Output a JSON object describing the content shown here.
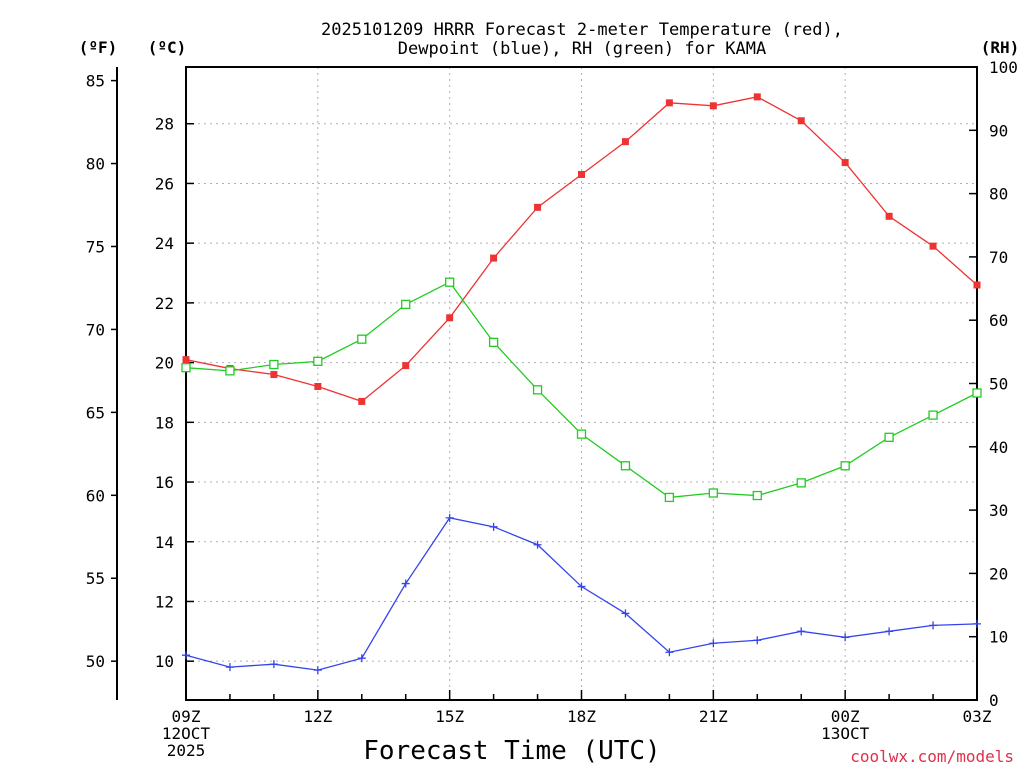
{
  "chart_data": {
    "type": "line",
    "title": [
      "2025101209 HRRR Forecast 2-meter Temperature (red),",
      "Dewpoint (blue), RH (green) for KAMA"
    ],
    "xlabel": "Forecast Time (UTC)",
    "credit": "coolwx.com/models",
    "units": {
      "fahrenheit": "(ºF)",
      "celsius": "(ºC)",
      "rh": "(RH)"
    },
    "x": [
      "09Z",
      "10Z",
      "11Z",
      "12Z",
      "13Z",
      "14Z",
      "15Z",
      "16Z",
      "17Z",
      "18Z",
      "19Z",
      "20Z",
      "21Z",
      "22Z",
      "23Z",
      "00Z",
      "01Z",
      "02Z",
      "03Z"
    ],
    "x_tick_labels": [
      {
        "index": 0,
        "lines": [
          "09Z",
          "12OCT",
          "2025"
        ]
      },
      {
        "index": 3,
        "lines": [
          "12Z"
        ]
      },
      {
        "index": 6,
        "lines": [
          "15Z"
        ]
      },
      {
        "index": 9,
        "lines": [
          "18Z"
        ]
      },
      {
        "index": 12,
        "lines": [
          "21Z"
        ]
      },
      {
        "index": 15,
        "lines": [
          "00Z",
          "13OCT"
        ]
      },
      {
        "index": 18,
        "lines": [
          "03Z"
        ]
      }
    ],
    "y_celsius": {
      "lim": [
        8.7,
        29.9
      ],
      "ticks": [
        10,
        12,
        14,
        16,
        18,
        20,
        22,
        24,
        26,
        28
      ]
    },
    "y_fahrenheit": {
      "lim": [
        47.66,
        85.82
      ],
      "ticks": [
        50,
        55,
        60,
        65,
        70,
        75,
        80,
        85
      ]
    },
    "y_rh": {
      "lim": [
        0,
        100
      ],
      "ticks": [
        0,
        10,
        20,
        30,
        40,
        50,
        60,
        70,
        80,
        90,
        100
      ]
    },
    "series": [
      {
        "name": "Temperature",
        "axis": "celsius",
        "color": "#ee3333",
        "marker": "filled-square",
        "values": [
          20.1,
          19.8,
          19.6,
          19.2,
          18.7,
          19.9,
          21.5,
          23.5,
          25.2,
          26.3,
          27.4,
          28.7,
          28.6,
          28.9,
          28.1,
          26.7,
          24.9,
          23.9,
          22.6
        ]
      },
      {
        "name": "Dewpoint",
        "axis": "celsius",
        "color": "#3344ee",
        "marker": "plus",
        "values": [
          10.2,
          9.8,
          9.9,
          9.7,
          10.1,
          12.6,
          14.8,
          14.5,
          13.9,
          12.5,
          11.6,
          10.3,
          10.6,
          10.7,
          11.0,
          10.8,
          11.0,
          11.2,
          11.25
        ]
      },
      {
        "name": "RH",
        "axis": "rh",
        "color": "#22cc22",
        "marker": "open-square",
        "values": [
          52.5,
          52.0,
          53.0,
          53.5,
          57.0,
          62.5,
          66.0,
          56.5,
          49.0,
          42.0,
          37.0,
          32.0,
          32.7,
          32.3,
          34.3,
          37.0,
          41.5,
          45.0,
          48.5
        ]
      }
    ]
  }
}
